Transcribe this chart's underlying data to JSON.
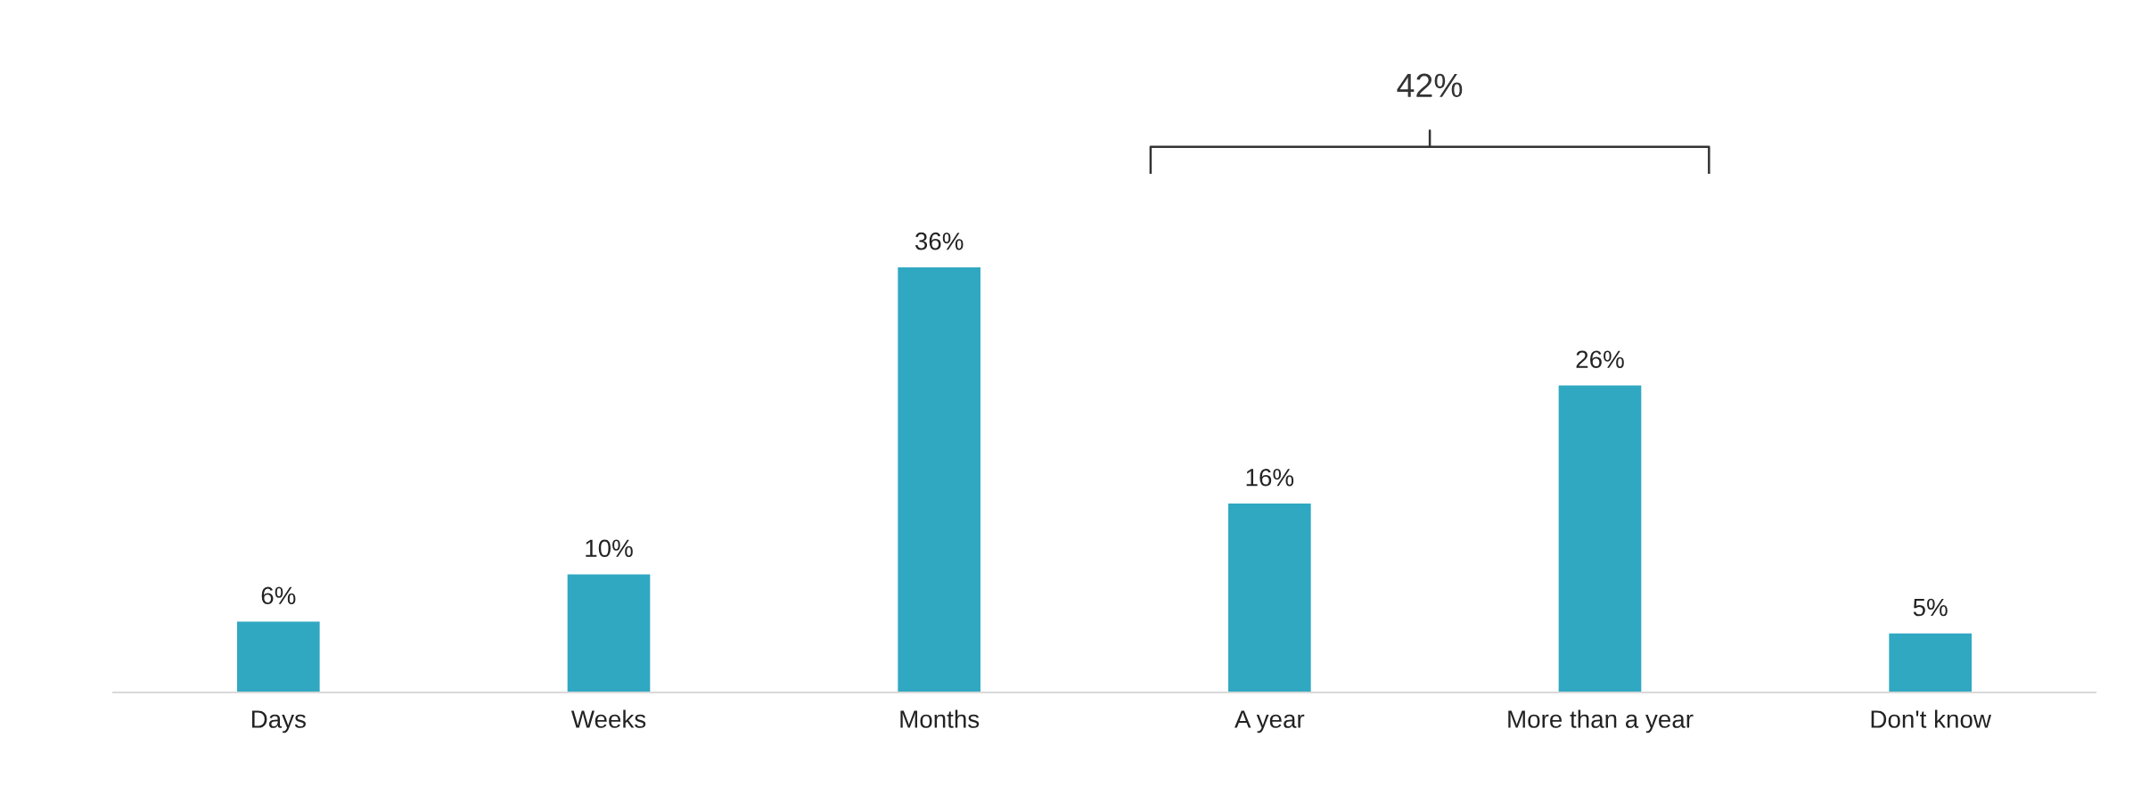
{
  "chart_data": {
    "type": "bar",
    "categories": [
      "Days",
      "Weeks",
      "Months",
      "A year",
      "More than a year",
      "Don't know"
    ],
    "values": [
      6,
      10,
      36,
      16,
      26,
      5
    ],
    "color": "#30a8c2",
    "data_labels": true,
    "value_labels": [
      "6%",
      "10%",
      "36%",
      "16%",
      "26%",
      "5%"
    ],
    "annotations": [
      "42%"
    ],
    "grid": false,
    "legend": false
  }
}
